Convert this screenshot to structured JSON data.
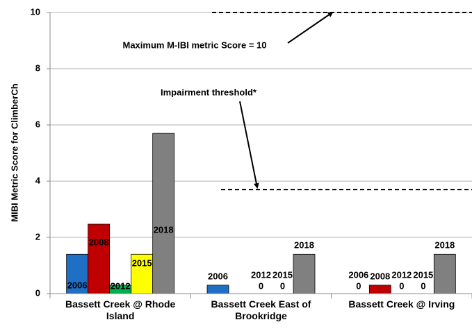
{
  "chart_data": {
    "type": "bar",
    "y_label": "MIBI Metric Score for ClimberCh",
    "categories": [
      "Bassett Creek @ Rhode Island",
      "Bassett Creek East of Brookridge",
      "Bassett Creek @ Irving"
    ],
    "series": [
      {
        "name": "2006",
        "color": "#1f6fc5",
        "values": [
          1.4,
          0.3,
          0
        ],
        "value_labels": [
          null,
          null,
          "0"
        ]
      },
      {
        "name": "2008",
        "color": "#c00000",
        "values": [
          2.47,
          null,
          0.3
        ],
        "value_labels": [
          null,
          null,
          null
        ]
      },
      {
        "name": "2012",
        "color": "#00b050",
        "values": [
          0.3,
          0,
          0
        ],
        "value_labels": [
          null,
          "0",
          "0"
        ]
      },
      {
        "name": "2015",
        "color": "#ffff00",
        "values": [
          1.4,
          0,
          0
        ],
        "value_labels": [
          null,
          "0",
          "0"
        ]
      },
      {
        "name": "2018",
        "color": "#808080",
        "values": [
          5.7,
          1.4,
          1.4
        ],
        "value_labels": [
          null,
          null,
          null
        ]
      }
    ],
    "ylim": [
      0,
      10
    ],
    "yticks": [
      0,
      2,
      4,
      6,
      8,
      10
    ],
    "grid": true,
    "reference_lines": [
      {
        "value": 10,
        "label": "Maximum M-IBI metric Score = 10"
      },
      {
        "value": 3.7,
        "label": "Impairment threshold*"
      }
    ]
  }
}
